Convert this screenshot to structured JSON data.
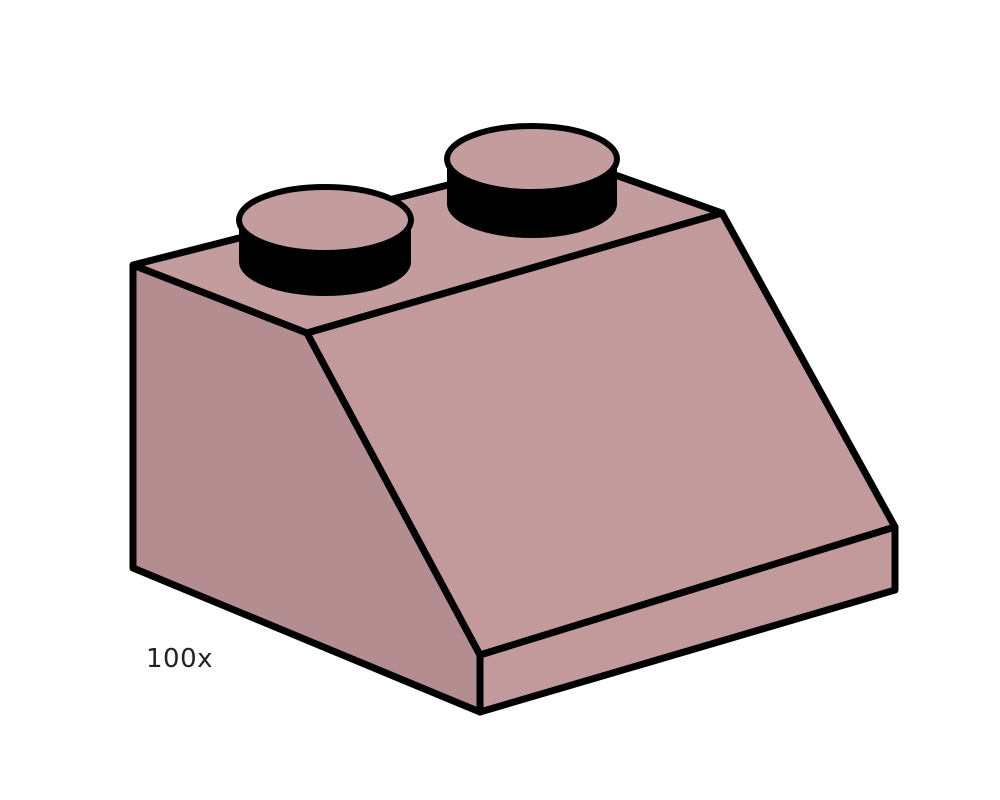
{
  "product": {
    "quantity_label": "100x",
    "brick_color": "#C0979A",
    "brick_shade_left": "#B08A8C",
    "brick_front_slope": "#C29A9C",
    "outline_color": "#000000",
    "stud_icon": "stud-icon"
  }
}
